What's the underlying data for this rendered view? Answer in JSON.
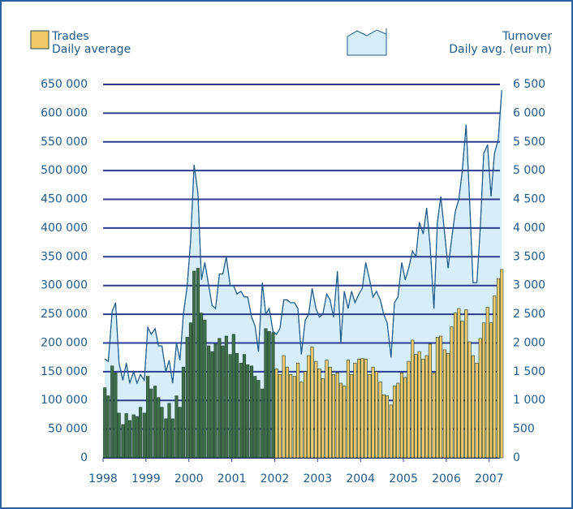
{
  "chart_data": {
    "type": "bar_area",
    "x": [
      1998,
      1998.08,
      1998.17,
      1998.25,
      1998.33,
      1998.42,
      1998.5,
      1998.58,
      1998.67,
      1998.75,
      1998.83,
      1998.92,
      1999,
      1999.08,
      1999.17,
      1999.25,
      1999.33,
      1999.42,
      1999.5,
      1999.58,
      1999.67,
      1999.75,
      1999.83,
      1999.92,
      2000,
      2000.08,
      2000.17,
      2000.25,
      2000.33,
      2000.42,
      2000.5,
      2000.58,
      2000.67,
      2000.75,
      2000.83,
      2000.92,
      2001,
      2001.08,
      2001.17,
      2001.25,
      2001.33,
      2001.42,
      2001.5,
      2001.58,
      2001.67,
      2001.75,
      2001.83,
      2001.92,
      2002,
      2002.08,
      2002.17,
      2002.25,
      2002.33,
      2002.42,
      2002.5,
      2002.58,
      2002.67,
      2002.75,
      2002.83,
      2002.92,
      2003,
      2003.08,
      2003.17,
      2003.25,
      2003.33,
      2003.42,
      2003.5,
      2003.58,
      2003.67,
      2003.75,
      2003.83,
      2003.92,
      2004,
      2004.08,
      2004.17,
      2004.25,
      2004.33,
      2004.42,
      2004.5,
      2004.58,
      2004.67,
      2004.75,
      2004.83,
      2004.92,
      2005,
      2005.08,
      2005.17,
      2005.25,
      2005.33,
      2005.42,
      2005.5,
      2005.58,
      2005.67,
      2005.75,
      2005.83,
      2005.92,
      2006,
      2006.08,
      2006.17,
      2006.25,
      2006.33,
      2006.42,
      2006.5,
      2006.58,
      2006.67,
      2006.75,
      2006.83,
      2006.92,
      2007,
      2007.08,
      2007.17,
      2007.25
    ],
    "series": [
      {
        "name": "Trades",
        "subtitle": "Daily average",
        "kind": "bar",
        "axis": "y",
        "color": "#f3c86b",
        "colors": [
          "#3f6e4a",
          "#3f6e4a",
          "#3f6e4a",
          "#3f6e4a",
          "#3f6e4a",
          "#3f6e4a",
          "#3f6e4a",
          "#3f6e4a",
          "#3f6e4a",
          "#3f6e4a",
          "#3f6e4a",
          "#3f6e4a",
          "#3f6e4a",
          "#3f6e4a",
          "#3f6e4a",
          "#3f6e4a",
          "#3f6e4a",
          "#3f6e4a",
          "#3f6e4a",
          "#3f6e4a",
          "#3f6e4a",
          "#3f6e4a",
          "#3f6e4a",
          "#3f6e4a",
          "#3f6e4a",
          "#3f6e4a",
          "#3f6e4a",
          "#3f6e4a",
          "#3f6e4a",
          "#3f6e4a",
          "#3f6e4a",
          "#3f6e4a",
          "#3f6e4a",
          "#3f6e4a",
          "#3f6e4a",
          "#3f6e4a",
          "#3f6e4a",
          "#3f6e4a",
          "#3f6e4a",
          "#3f6e4a",
          "#3f6e4a",
          "#3f6e4a",
          "#3f6e4a",
          "#3f6e4a",
          "#3f6e4a",
          "#3f6e4a",
          "#3f6e4a",
          "#3f6e4a",
          "#f3c86b",
          "#f3c86b",
          "#f3c86b",
          "#f3c86b",
          "#f3c86b",
          "#f3c86b",
          "#f3c86b",
          "#f3c86b",
          "#f3c86b",
          "#f3c86b",
          "#f3c86b",
          "#f3c86b",
          "#f3c86b",
          "#f3c86b",
          "#f3c86b",
          "#f3c86b",
          "#f3c86b",
          "#f3c86b",
          "#f3c86b",
          "#f3c86b",
          "#f3c86b",
          "#f3c86b",
          "#f3c86b",
          "#f3c86b",
          "#f3c86b",
          "#f3c86b",
          "#f3c86b",
          "#f3c86b",
          "#f3c86b",
          "#f3c86b",
          "#f3c86b",
          "#f3c86b",
          "#f3c86b",
          "#f3c86b",
          "#f3c86b",
          "#f3c86b",
          "#f3c86b",
          "#f3c86b",
          "#f3c86b",
          "#f3c86b",
          "#f3c86b",
          "#f3c86b",
          "#f3c86b",
          "#f3c86b",
          "#f3c86b",
          "#f3c86b",
          "#f3c86b",
          "#f3c86b",
          "#f3c86b",
          "#f3c86b",
          "#f3c86b",
          "#f3c86b",
          "#f3c86b",
          "#f3c86b",
          "#f3c86b",
          "#f3c86b",
          "#f3c86b",
          "#f3c86b",
          "#f3c86b",
          "#f3c86b",
          "#f3c86b",
          "#f3c86b",
          "#f3c86b",
          "#f3c86b"
        ],
        "values": [
          122000,
          108000,
          160000,
          148000,
          78000,
          58000,
          77000,
          65000,
          75000,
          72000,
          88000,
          78000,
          142000,
          120000,
          125000,
          105000,
          88000,
          68000,
          95000,
          68000,
          108000,
          88000,
          158000,
          210000,
          235000,
          325000,
          330000,
          252000,
          240000,
          195000,
          185000,
          198000,
          208000,
          195000,
          212000,
          180000,
          215000,
          182000,
          165000,
          180000,
          162000,
          160000,
          142000,
          135000,
          120000,
          225000,
          220000,
          218000,
          155000,
          145000,
          178000,
          158000,
          145000,
          142000,
          165000,
          132000,
          150000,
          178000,
          193000,
          168000,
          155000,
          138000,
          170000,
          158000,
          145000,
          148000,
          130000,
          125000,
          170000,
          145000,
          165000,
          172000,
          173000,
          172000,
          145000,
          158000,
          150000,
          132000,
          110000,
          108000,
          92000,
          125000,
          130000,
          148000,
          140000,
          168000,
          205000,
          180000,
          185000,
          172000,
          178000,
          198000,
          148000,
          210000,
          212000,
          188000,
          182000,
          228000,
          252000,
          260000,
          238000,
          258000,
          202000,
          178000,
          165000,
          208000,
          235000,
          262000,
          235000,
          282000,
          312000,
          328000
        ]
      },
      {
        "name": "Turnover",
        "subtitle": "Daily avg. (eur m)",
        "kind": "area",
        "axis": "y2",
        "color": "#d6eef9",
        "line_color": "#1f5a8a",
        "values": [
          1720,
          1680,
          2550,
          2700,
          1650,
          1350,
          1650,
          1300,
          1500,
          1300,
          1450,
          1350,
          2270,
          2150,
          2250,
          1950,
          1950,
          1500,
          1700,
          1300,
          2000,
          1700,
          2500,
          3000,
          3800,
          5100,
          4600,
          3100,
          3400,
          3000,
          2650,
          2600,
          3200,
          3200,
          3500,
          3000,
          3000,
          2850,
          2900,
          2800,
          2800,
          2450,
          2300,
          1850,
          3050,
          2500,
          2600,
          2200,
          2150,
          2250,
          2750,
          2750,
          2700,
          2700,
          2600,
          1800,
          2400,
          2500,
          2950,
          2600,
          2450,
          2500,
          2850,
          2750,
          2450,
          3250,
          2000,
          2900,
          2600,
          2900,
          2700,
          2850,
          2950,
          3400,
          3100,
          2800,
          2900,
          2750,
          2500,
          2350,
          1750,
          2700,
          2800,
          3400,
          3100,
          3300,
          3600,
          3500,
          4100,
          3900,
          4350,
          3700,
          2600,
          4100,
          4550,
          3900,
          3300,
          3800,
          4300,
          4500,
          5000,
          5800,
          4500,
          3050,
          3050,
          4000,
          5300,
          5450,
          4550,
          5300,
          5550,
          6400
        ]
      }
    ],
    "xlim": [
      1998,
      2007.25
    ],
    "xticks": [
      1998,
      1999,
      2000,
      2001,
      2002,
      2003,
      2004,
      2005,
      2006,
      2007
    ],
    "ylim": [
      0,
      650000
    ],
    "yticks": [
      0,
      {
        "value": 50000,
        "label": "50 000"
      },
      {
        "value": 100000,
        "label": "100 000"
      },
      {
        "value": 150000,
        "label": "150 000"
      },
      {
        "value": 200000,
        "label": "200 000"
      },
      {
        "value": 250000,
        "label": "250 000"
      },
      {
        "value": 300000,
        "label": "300 000"
      },
      {
        "value": 350000,
        "label": "350 000"
      },
      {
        "value": 400000,
        "label": "400 000"
      },
      {
        "value": 450000,
        "label": "450 000"
      },
      {
        "value": 500000,
        "label": "500 000"
      },
      {
        "value": 550000,
        "label": "550 000"
      },
      {
        "value": 600000,
        "label": "600 000"
      },
      {
        "value": 650000,
        "label": "650 000"
      }
    ],
    "y2lim": [
      0,
      6500
    ],
    "y2ticks": [
      0,
      500,
      {
        "value": 1000,
        "label": "1 000"
      },
      {
        "value": 1500,
        "label": "1 500"
      },
      {
        "value": 2000,
        "label": "2 000"
      },
      {
        "value": 2500,
        "label": "2 500"
      },
      {
        "value": 3000,
        "label": "3 000"
      },
      {
        "value": 3500,
        "label": "3 500"
      },
      {
        "value": 4000,
        "label": "4 000"
      },
      {
        "value": 4500,
        "label": "4 500"
      },
      {
        "value": 5000,
        "label": "5 000"
      },
      {
        "value": 5500,
        "label": "5 500"
      },
      {
        "value": 6000,
        "label": "6 000"
      },
      {
        "value": 6500,
        "label": "6 500"
      }
    ],
    "grid": true,
    "grid_color": "#2b3c8f"
  }
}
